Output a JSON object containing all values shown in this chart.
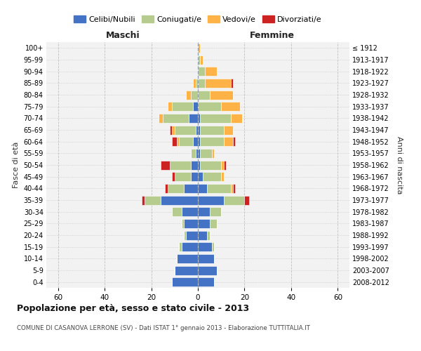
{
  "age_groups": [
    "0-4",
    "5-9",
    "10-14",
    "15-19",
    "20-24",
    "25-29",
    "30-34",
    "35-39",
    "40-44",
    "45-49",
    "50-54",
    "55-59",
    "60-64",
    "65-69",
    "70-74",
    "75-79",
    "80-84",
    "85-89",
    "90-94",
    "95-99",
    "100+"
  ],
  "birth_years": [
    "2008-2012",
    "2003-2007",
    "1998-2002",
    "1993-1997",
    "1988-1992",
    "1983-1987",
    "1978-1982",
    "1973-1977",
    "1968-1972",
    "1963-1967",
    "1958-1962",
    "1953-1957",
    "1948-1952",
    "1943-1947",
    "1938-1942",
    "1933-1937",
    "1928-1932",
    "1923-1927",
    "1918-1922",
    "1913-1917",
    "≤ 1912"
  ],
  "colors": {
    "celibe": "#4472C4",
    "coniugato": "#B5CC8E",
    "vedovo": "#FFB347",
    "divorziato": "#CC2222"
  },
  "males": {
    "celibe": [
      11,
      10,
      9,
      7,
      5,
      6,
      7,
      16,
      6,
      3,
      3,
      1,
      2,
      1,
      4,
      2,
      0,
      0,
      0,
      0,
      0
    ],
    "coniugato": [
      0,
      0,
      0,
      1,
      1,
      1,
      4,
      7,
      7,
      7,
      9,
      2,
      6,
      9,
      11,
      9,
      3,
      1,
      0,
      0,
      0
    ],
    "vedovo": [
      0,
      0,
      0,
      0,
      0,
      0,
      0,
      0,
      0,
      0,
      0,
      0,
      1,
      1,
      2,
      2,
      2,
      1,
      0,
      0,
      0
    ],
    "divorziato": [
      0,
      0,
      0,
      0,
      0,
      0,
      0,
      1,
      1,
      1,
      4,
      0,
      2,
      1,
      0,
      0,
      0,
      0,
      0,
      0,
      0
    ]
  },
  "females": {
    "celibe": [
      7,
      8,
      7,
      6,
      4,
      5,
      5,
      11,
      4,
      2,
      1,
      1,
      1,
      1,
      1,
      0,
      0,
      0,
      0,
      0,
      0
    ],
    "coniugato": [
      0,
      0,
      0,
      1,
      1,
      3,
      5,
      9,
      10,
      8,
      9,
      5,
      10,
      10,
      13,
      10,
      5,
      3,
      3,
      1,
      0
    ],
    "vedovo": [
      0,
      0,
      0,
      0,
      0,
      0,
      0,
      0,
      1,
      1,
      1,
      1,
      4,
      4,
      5,
      8,
      10,
      11,
      5,
      1,
      1
    ],
    "divorziato": [
      0,
      0,
      0,
      0,
      0,
      0,
      0,
      2,
      1,
      0,
      1,
      0,
      1,
      0,
      0,
      0,
      0,
      1,
      0,
      0,
      0
    ]
  },
  "title": "Popolazione per età, sesso e stato civile - 2013",
  "subtitle": "COMUNE DI CASANOVA LERRONE (SV) - Dati ISTAT 1° gennaio 2013 - Elaborazione TUTTITALIA.IT",
  "xlabel_left": "Maschi",
  "xlabel_right": "Femmine",
  "ylabel": "Fasce di età",
  "ylabel_right": "Anni di nascita",
  "xlim": 65,
  "background_color": "#FFFFFF",
  "grid_color": "#CCCCCC",
  "legend_labels": [
    "Celibi/Nubili",
    "Coniugati/e",
    "Vedovi/e",
    "Divorziati/e"
  ]
}
